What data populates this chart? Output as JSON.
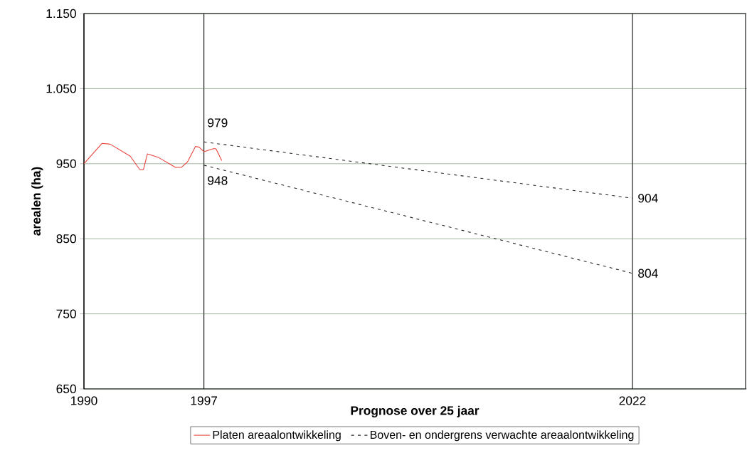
{
  "chart_data": {
    "type": "line",
    "xlabel": "Prognose over 25 jaar",
    "ylabel": "arealen (ha)",
    "xlim": [
      1990,
      2028.6
    ],
    "xticks": [
      1990,
      1997,
      2022
    ],
    "ylim": [
      650,
      1150
    ],
    "yticks": [
      650,
      750,
      850,
      950,
      {
        "value": 1050,
        "label": "1.050"
      },
      {
        "value": 1150,
        "label": "1.150"
      }
    ],
    "grid": true,
    "legend": "bottom",
    "series": [
      {
        "name": "Platen areaalontwikkeling",
        "color": "#e8423a",
        "line_style": "solid",
        "x": [
          1990,
          1991.05,
          1991.53,
          1992.7,
          1993.26,
          1993.47,
          1993.7,
          1994.37,
          1995.34,
          1995.68,
          1996.03,
          1996.51,
          1996.72,
          1997,
          1997.55,
          1997.7,
          1998.04
        ],
        "values": [
          950,
          977,
          976,
          960,
          942,
          942,
          963,
          958,
          945,
          945,
          952,
          973,
          972,
          966,
          970,
          970,
          954
        ]
      },
      {
        "name": "Boven- en ondergrens verwachte areaalontwikkeling",
        "color": "#222222",
        "line_style": "dashed",
        "x": [
          1997,
          2022
        ],
        "values": [
          979,
          904
        ],
        "value_labels": [
          "979",
          "904"
        ]
      },
      {
        "color": "#222222",
        "line_style": "dashed",
        "x": [
          1997,
          2022
        ],
        "values": [
          948,
          804
        ],
        "value_labels": [
          "948",
          "804"
        ]
      }
    ]
  }
}
